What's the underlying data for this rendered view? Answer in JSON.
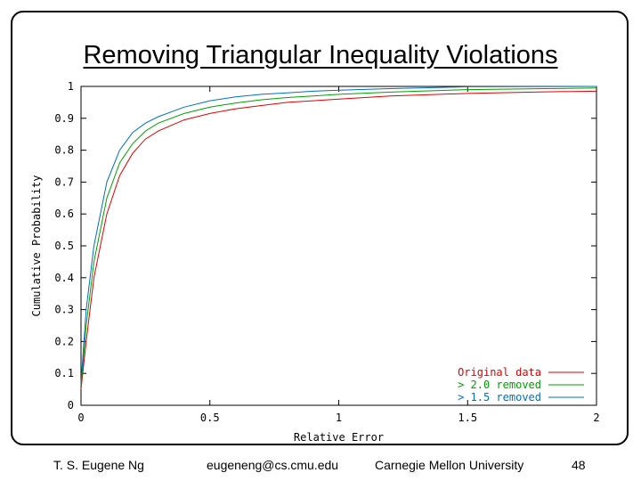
{
  "slide": {
    "title": "Removing Triangular Inequality Violations",
    "footer": {
      "author": "T. S. Eugene Ng",
      "email": "eugeneng@cs.cmu.edu",
      "institution": "Carnegie Mellon University",
      "page": "48"
    }
  },
  "chart_data": {
    "type": "line",
    "title": "",
    "xlabel": "Relative Error",
    "ylabel": "Cumulative Probability",
    "xlim": [
      0,
      2
    ],
    "ylim": [
      0,
      1
    ],
    "xticks": [
      "0",
      "0.5",
      "1",
      "1.5",
      "2"
    ],
    "yticks": [
      "0",
      "0.1",
      "0.2",
      "0.3",
      "0.4",
      "0.5",
      "0.6",
      "0.7",
      "0.8",
      "0.9",
      "1"
    ],
    "legend_position": "bottom-right",
    "grid": false,
    "series": [
      {
        "name": "Original data",
        "color": "#e00000",
        "x": [
          0,
          0.02,
          0.05,
          0.1,
          0.15,
          0.2,
          0.25,
          0.3,
          0.4,
          0.5,
          0.6,
          0.7,
          0.8,
          0.9,
          1.0,
          1.2,
          1.5,
          1.8,
          2.0
        ],
        "y": [
          0.05,
          0.2,
          0.4,
          0.6,
          0.72,
          0.79,
          0.835,
          0.86,
          0.895,
          0.915,
          0.93,
          0.94,
          0.95,
          0.955,
          0.96,
          0.97,
          0.978,
          0.983,
          0.985
        ]
      },
      {
        "name": "> 2.0 removed",
        "color": "#00a000",
        "x": [
          0,
          0.02,
          0.05,
          0.1,
          0.15,
          0.2,
          0.25,
          0.3,
          0.4,
          0.5,
          0.6,
          0.7,
          0.8,
          0.9,
          1.0,
          1.2,
          1.5,
          1.8,
          2.0
        ],
        "y": [
          0.06,
          0.25,
          0.45,
          0.65,
          0.76,
          0.82,
          0.86,
          0.885,
          0.915,
          0.935,
          0.948,
          0.958,
          0.965,
          0.97,
          0.975,
          0.982,
          0.99,
          0.993,
          0.995
        ]
      },
      {
        "name": "> 1.5 removed",
        "color": "#0070c0",
        "x": [
          0,
          0.02,
          0.05,
          0.1,
          0.15,
          0.2,
          0.25,
          0.3,
          0.4,
          0.5,
          0.6,
          0.7,
          0.8,
          0.9,
          1.0,
          1.2,
          1.4,
          1.5,
          2.0
        ],
        "y": [
          0.07,
          0.3,
          0.5,
          0.7,
          0.8,
          0.855,
          0.885,
          0.905,
          0.935,
          0.955,
          0.967,
          0.975,
          0.98,
          0.985,
          0.988,
          0.993,
          0.997,
          0.999,
          1.0
        ]
      }
    ]
  }
}
